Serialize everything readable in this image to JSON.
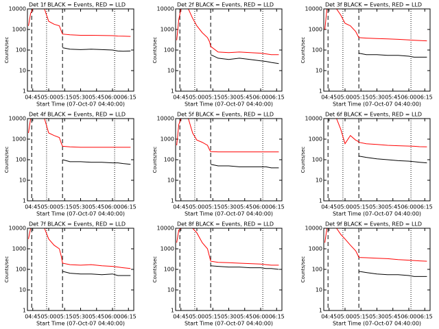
{
  "chart_data": [
    {
      "type": "line",
      "title": "Det 1f BLACK = Events, RED = LLD",
      "xlabel": "Start Time (07-Oct-07 04:40:00)",
      "ylabel": "Counts/sec",
      "x": [
        "04:41",
        "04:43",
        "04:45",
        "04:48",
        "04:52",
        "04:56",
        "05:00",
        "05:05",
        "05:10",
        "05:12",
        "05:13",
        "05:20",
        "05:30",
        "05:40",
        "05:50",
        "06:00",
        "06:05",
        "06:10",
        "06:17"
      ],
      "series": [
        {
          "color": "#000000",
          "values": [
            null,
            null,
            null,
            null,
            null,
            null,
            null,
            null,
            null,
            null,
            130,
            110,
            105,
            110,
            105,
            100,
            90,
            88,
            90
          ]
        },
        {
          "color": "#ff0000",
          "values": [
            1500,
            6000,
            10000,
            10000,
            10000,
            10000,
            2500,
            1800,
            1500,
            800,
            600,
            550,
            520,
            520,
            510,
            500,
            480,
            470,
            460
          ]
        }
      ],
      "xlim": [
        "04:40",
        "06:20"
      ],
      "xticks": [
        "04:45",
        "05:00",
        "05:15",
        "05:30",
        "05:45",
        "06:00",
        "06:15"
      ],
      "ylim": [
        1,
        10000
      ],
      "yticks": [
        1,
        10,
        100,
        1000,
        10000
      ],
      "log_y": true,
      "vlines": [
        {
          "x": "04:44",
          "style": "dashed"
        },
        {
          "x": "04:58",
          "style": "dotted"
        },
        {
          "x": "05:13",
          "style": "dashed"
        },
        {
          "x": "06:02",
          "style": "dotted"
        }
      ]
    },
    {
      "type": "line",
      "title": "Det 2f BLACK = Events, RED = LLD",
      "xlabel": "Start Time (07-Oct-07 04:40:00)",
      "ylabel": "Counts/sec",
      "x": [
        "04:41",
        "04:43",
        "04:45",
        "04:48",
        "04:52",
        "04:56",
        "05:00",
        "05:05",
        "05:10",
        "05:12",
        "05:13",
        "05:20",
        "05:30",
        "05:40",
        "05:50",
        "06:00",
        "06:05",
        "06:10",
        "06:17"
      ],
      "series": [
        {
          "color": "#000000",
          "values": [
            null,
            null,
            null,
            null,
            null,
            null,
            null,
            null,
            null,
            null,
            60,
            40,
            35,
            40,
            35,
            30,
            28,
            25,
            22
          ]
        },
        {
          "color": "#ff0000",
          "values": [
            300,
            3000,
            10000,
            10000,
            10000,
            3500,
            1500,
            700,
            400,
            250,
            150,
            80,
            75,
            80,
            75,
            70,
            65,
            60,
            60
          ]
        }
      ],
      "xlim": [
        "04:40",
        "06:20"
      ],
      "xticks": [
        "04:45",
        "05:00",
        "05:15",
        "05:30",
        "05:45",
        "06:00",
        "06:15"
      ],
      "ylim": [
        1,
        10000
      ],
      "yticks": [
        1,
        10,
        100,
        1000,
        10000
      ],
      "log_y": true,
      "vlines": [
        {
          "x": "04:44",
          "style": "dashed"
        },
        {
          "x": "04:58",
          "style": "dotted"
        },
        {
          "x": "05:13",
          "style": "dashed"
        },
        {
          "x": "06:02",
          "style": "dotted"
        }
      ]
    },
    {
      "type": "line",
      "title": "Det 3f BLACK = Events, RED = LLD",
      "xlabel": "Start Time (07-Oct-07 04:40:00)",
      "ylabel": "Counts/sec",
      "x": [
        "04:41",
        "04:43",
        "04:45",
        "04:48",
        "04:52",
        "04:56",
        "05:00",
        "05:05",
        "05:10",
        "05:12",
        "05:13",
        "05:20",
        "05:30",
        "05:40",
        "05:50",
        "06:00",
        "06:05",
        "06:10",
        "06:17"
      ],
      "series": [
        {
          "color": "#000000",
          "values": [
            null,
            null,
            null,
            null,
            null,
            null,
            null,
            null,
            null,
            null,
            70,
            60,
            60,
            55,
            55,
            50,
            45,
            45,
            45
          ]
        },
        {
          "color": "#ff0000",
          "values": [
            1000,
            10000,
            10000,
            10000,
            10000,
            5000,
            2000,
            1500,
            800,
            500,
            400,
            380,
            360,
            350,
            330,
            310,
            300,
            290,
            280
          ]
        }
      ],
      "xlim": [
        "04:40",
        "06:20"
      ],
      "xticks": [
        "04:45",
        "05:00",
        "05:15",
        "05:30",
        "05:45",
        "06:00",
        "06:15"
      ],
      "ylim": [
        1,
        10000
      ],
      "yticks": [
        1,
        10,
        100,
        1000,
        10000
      ],
      "log_y": true,
      "vlines": [
        {
          "x": "04:44",
          "style": "dashed"
        },
        {
          "x": "04:58",
          "style": "dotted"
        },
        {
          "x": "05:13",
          "style": "dashed"
        },
        {
          "x": "06:02",
          "style": "dotted"
        }
      ]
    },
    {
      "type": "line",
      "title": "Det 4f BLACK = Events, RED = LLD",
      "xlabel": "Start Time (07-Oct-07 04:40:00)",
      "ylabel": "Counts/sec",
      "x": [
        "04:41",
        "04:43",
        "04:45",
        "04:48",
        "04:52",
        "04:56",
        "05:00",
        "05:05",
        "05:10",
        "05:12",
        "05:13",
        "05:20",
        "05:30",
        "05:40",
        "05:50",
        "06:00",
        "06:05",
        "06:10",
        "06:17"
      ],
      "series": [
        {
          "color": "#000000",
          "values": [
            null,
            null,
            null,
            null,
            null,
            null,
            null,
            null,
            null,
            null,
            100,
            80,
            80,
            75,
            75,
            70,
            70,
            65,
            60
          ]
        },
        {
          "color": "#ff0000",
          "values": [
            2000,
            10000,
            10000,
            10000,
            10000,
            10000,
            2000,
            1500,
            1200,
            600,
            450,
            420,
            400,
            400,
            400,
            400,
            400,
            400,
            400
          ]
        }
      ],
      "xlim": [
        "04:40",
        "06:20"
      ],
      "xticks": [
        "04:45",
        "05:00",
        "05:15",
        "05:30",
        "05:45",
        "06:00",
        "06:15"
      ],
      "ylim": [
        1,
        10000
      ],
      "yticks": [
        1,
        10,
        100,
        1000,
        10000
      ],
      "log_y": true,
      "vlines": [
        {
          "x": "04:44",
          "style": "dashed"
        },
        {
          "x": "04:58",
          "style": "dotted"
        },
        {
          "x": "05:13",
          "style": "dashed"
        },
        {
          "x": "06:02",
          "style": "dotted"
        }
      ]
    },
    {
      "type": "line",
      "title": "Det 5f BLACK = Events, RED = LLD",
      "xlabel": "Start Time (07-Oct-07 04:40:00)",
      "ylabel": "Counts/sec",
      "x": [
        "04:41",
        "04:43",
        "04:45",
        "04:48",
        "04:52",
        "04:56",
        "05:00",
        "05:05",
        "05:10",
        "05:12",
        "05:13",
        "05:20",
        "05:30",
        "05:40",
        "05:50",
        "06:00",
        "06:05",
        "06:10",
        "06:17"
      ],
      "series": [
        {
          "color": "#000000",
          "values": [
            null,
            null,
            null,
            null,
            null,
            null,
            null,
            null,
            null,
            null,
            60,
            50,
            50,
            45,
            45,
            45,
            45,
            40,
            40
          ]
        },
        {
          "color": "#ff0000",
          "values": [
            500,
            5000,
            10000,
            10000,
            10000,
            2000,
            900,
            700,
            500,
            300,
            250,
            240,
            240,
            240,
            240,
            240,
            240,
            240,
            240
          ]
        }
      ],
      "xlim": [
        "04:40",
        "06:20"
      ],
      "xticks": [
        "04:45",
        "05:00",
        "05:15",
        "05:30",
        "05:45",
        "06:00",
        "06:15"
      ],
      "ylim": [
        1,
        10000
      ],
      "yticks": [
        1,
        10,
        100,
        1000,
        10000
      ],
      "log_y": true,
      "vlines": [
        {
          "x": "04:44",
          "style": "dashed"
        },
        {
          "x": "04:58",
          "style": "dotted"
        },
        {
          "x": "05:13",
          "style": "dashed"
        },
        {
          "x": "06:02",
          "style": "dotted"
        }
      ]
    },
    {
      "type": "line",
      "title": "Det 6f BLACK = Events, RED = LLD",
      "xlabel": "Start Time (07-Oct-07 04:40:00)",
      "ylabel": "Counts/sec",
      "x": [
        "04:41",
        "04:43",
        "04:45",
        "04:48",
        "04:52",
        "04:56",
        "05:00",
        "05:05",
        "05:10",
        "05:12",
        "05:13",
        "05:20",
        "05:30",
        "05:40",
        "05:50",
        "06:00",
        "06:05",
        "06:10",
        "06:17"
      ],
      "series": [
        {
          "color": "#000000",
          "values": [
            null,
            null,
            null,
            null,
            null,
            null,
            null,
            null,
            null,
            null,
            150,
            130,
            110,
            100,
            90,
            85,
            80,
            75,
            70
          ]
        },
        {
          "color": "#ff0000",
          "values": [
            10000,
            10000,
            10000,
            10000,
            10000,
            3000,
            600,
            1500,
            900,
            800,
            700,
            600,
            550,
            500,
            480,
            460,
            450,
            430,
            420
          ]
        }
      ],
      "xlim": [
        "04:40",
        "06:20"
      ],
      "xticks": [
        "04:45",
        "05:00",
        "05:15",
        "05:30",
        "05:45",
        "06:00",
        "06:15"
      ],
      "ylim": [
        1,
        10000
      ],
      "yticks": [
        1,
        10,
        100,
        1000,
        10000
      ],
      "log_y": true,
      "vlines": [
        {
          "x": "04:44",
          "style": "dashed"
        },
        {
          "x": "04:58",
          "style": "dotted"
        },
        {
          "x": "05:13",
          "style": "dashed"
        },
        {
          "x": "06:02",
          "style": "dotted"
        }
      ]
    },
    {
      "type": "line",
      "title": "Det 7f BLACK = Events, RED = LLD",
      "xlabel": "Start Time (07-Oct-07 04:40:00)",
      "ylabel": "Counts/sec",
      "x": [
        "04:41",
        "04:43",
        "04:45",
        "04:48",
        "04:52",
        "04:56",
        "05:00",
        "05:05",
        "05:10",
        "05:12",
        "05:13",
        "05:20",
        "05:30",
        "05:40",
        "05:50",
        "06:00",
        "06:05",
        "06:10",
        "06:17"
      ],
      "series": [
        {
          "color": "#000000",
          "values": [
            null,
            null,
            null,
            null,
            null,
            null,
            null,
            null,
            null,
            null,
            80,
            65,
            60,
            60,
            55,
            60,
            50,
            50,
            50
          ]
        },
        {
          "color": "#ff0000",
          "values": [
            3000,
            10000,
            10000,
            10000,
            10000,
            10000,
            3000,
            1500,
            1000,
            400,
            200,
            170,
            160,
            170,
            150,
            140,
            130,
            120,
            110
          ]
        }
      ],
      "xlim": [
        "04:40",
        "06:20"
      ],
      "xticks": [
        "04:45",
        "05:00",
        "05:15",
        "05:30",
        "05:45",
        "06:00",
        "06:15"
      ],
      "ylim": [
        1,
        10000
      ],
      "yticks": [
        1,
        10,
        100,
        1000,
        10000
      ],
      "log_y": true,
      "vlines": [
        {
          "x": "04:44",
          "style": "dashed"
        },
        {
          "x": "04:58",
          "style": "dotted"
        },
        {
          "x": "05:13",
          "style": "dashed"
        },
        {
          "x": "06:02",
          "style": "dotted"
        }
      ]
    },
    {
      "type": "line",
      "title": "Det 8f BLACK = Events, RED = LLD",
      "xlabel": "Start Time (07-Oct-07 04:40:00)",
      "ylabel": "Counts/sec",
      "x": [
        "04:41",
        "04:43",
        "04:45",
        "04:48",
        "04:52",
        "04:56",
        "05:00",
        "05:05",
        "05:10",
        "05:12",
        "05:13",
        "05:20",
        "05:30",
        "05:40",
        "05:50",
        "06:00",
        "06:05",
        "06:10",
        "06:17"
      ],
      "series": [
        {
          "color": "#000000",
          "values": [
            null,
            null,
            null,
            null,
            null,
            null,
            null,
            null,
            null,
            null,
            150,
            140,
            130,
            130,
            120,
            120,
            110,
            110,
            100
          ]
        },
        {
          "color": "#ff0000",
          "values": [
            2000,
            8000,
            10000,
            10000,
            10000,
            10000,
            6000,
            2000,
            1000,
            400,
            250,
            220,
            210,
            200,
            190,
            180,
            170,
            160,
            160
          ]
        }
      ],
      "xlim": [
        "04:40",
        "06:20"
      ],
      "xticks": [
        "04:45",
        "05:00",
        "05:15",
        "05:30",
        "05:45",
        "06:00",
        "06:15"
      ],
      "ylim": [
        1,
        10000
      ],
      "yticks": [
        1,
        10,
        100,
        1000,
        10000
      ],
      "log_y": true,
      "vlines": [
        {
          "x": "04:44",
          "style": "dashed"
        },
        {
          "x": "04:58",
          "style": "dotted"
        },
        {
          "x": "05:13",
          "style": "dashed"
        },
        {
          "x": "06:02",
          "style": "dotted"
        }
      ]
    },
    {
      "type": "line",
      "title": "Det 9f BLACK = Events, RED = LLD",
      "xlabel": "Start Time (07-Oct-07 04:40:00)",
      "ylabel": "Counts/sec",
      "x": [
        "04:41",
        "04:43",
        "04:45",
        "04:48",
        "04:52",
        "04:56",
        "05:00",
        "05:05",
        "05:10",
        "05:12",
        "05:13",
        "05:20",
        "05:30",
        "05:40",
        "05:50",
        "06:00",
        "06:05",
        "06:10",
        "06:17"
      ],
      "series": [
        {
          "color": "#000000",
          "values": [
            null,
            null,
            null,
            null,
            null,
            null,
            null,
            null,
            null,
            null,
            80,
            70,
            60,
            55,
            55,
            50,
            45,
            45,
            45
          ]
        },
        {
          "color": "#ff0000",
          "values": [
            2000,
            10000,
            10000,
            10000,
            10000,
            5000,
            3000,
            1500,
            800,
            500,
            380,
            370,
            350,
            330,
            300,
            280,
            270,
            260,
            250
          ]
        }
      ],
      "xlim": [
        "04:40",
        "06:20"
      ],
      "xticks": [
        "04:45",
        "05:00",
        "05:15",
        "05:30",
        "05:45",
        "06:00",
        "06:15"
      ],
      "ylim": [
        1,
        10000
      ],
      "yticks": [
        1,
        10,
        100,
        1000,
        10000
      ],
      "log_y": true,
      "vlines": [
        {
          "x": "04:44",
          "style": "dashed"
        },
        {
          "x": "04:58",
          "style": "dotted"
        },
        {
          "x": "05:13",
          "style": "dashed"
        },
        {
          "x": "06:02",
          "style": "dotted"
        }
      ]
    }
  ]
}
